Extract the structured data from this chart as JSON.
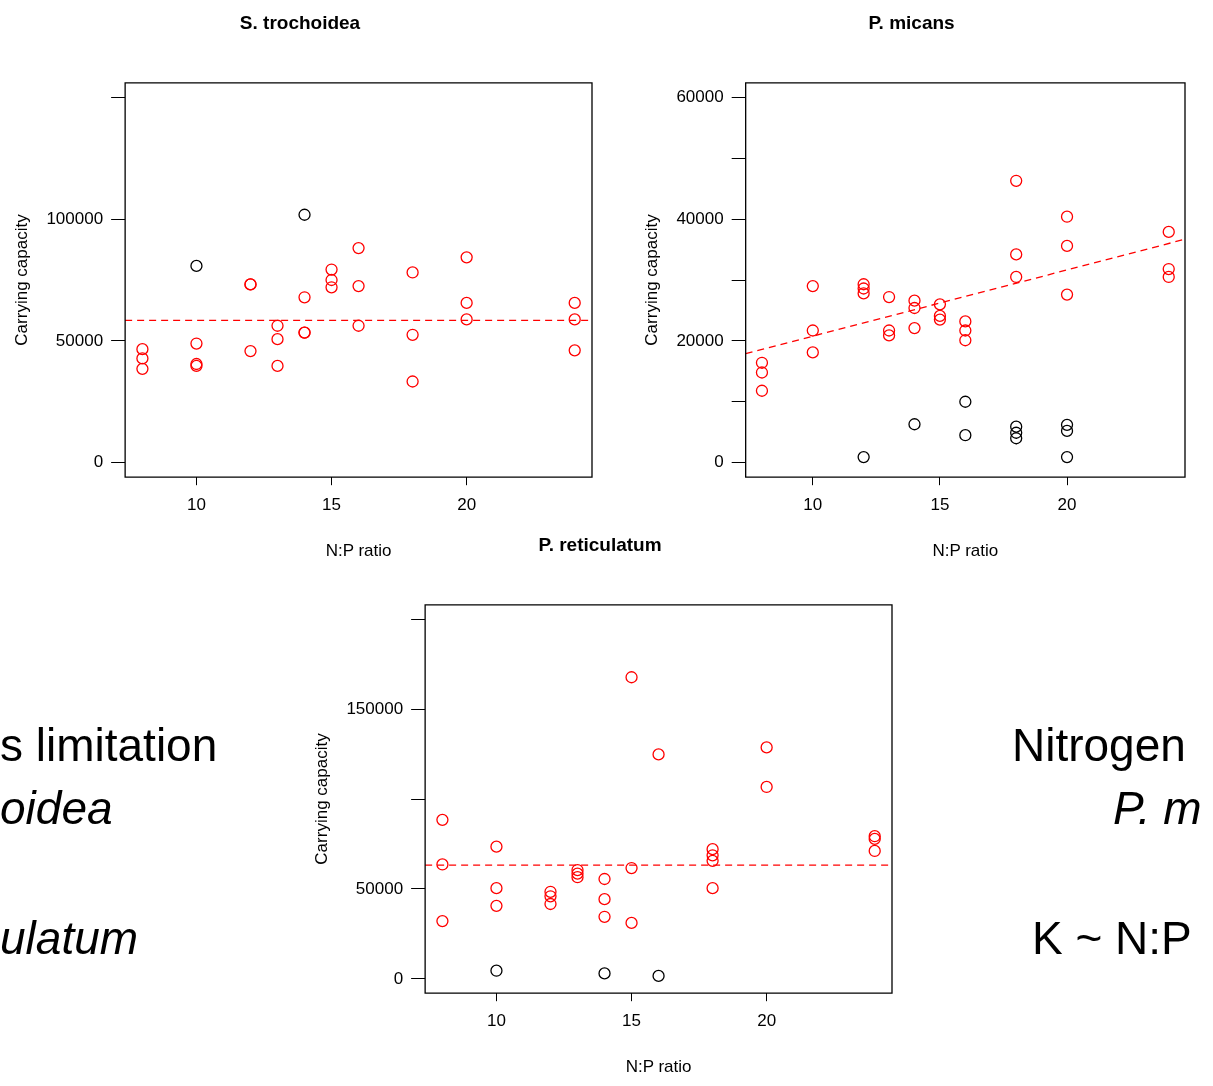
{
  "chart_data": [
    {
      "type": "scatter",
      "title": "S. trochoidea",
      "xlabel": "N:P ratio",
      "ylabel": "Carrying capacity",
      "xlim": [
        7.36,
        24.64
      ],
      "xticks": [
        10,
        15,
        20
      ],
      "ylim": [
        -6000,
        156000
      ],
      "yticks": [
        0,
        50000,
        100000,
        {
          "value": 150000,
          "label": null
        }
      ],
      "grid": false,
      "legend": false,
      "marker": "circle",
      "series": [
        {
          "color": "#ff0000",
          "x": [
            8,
            8,
            8,
            10,
            10,
            10,
            12,
            12,
            12,
            13,
            13,
            13,
            14,
            14,
            14,
            15,
            15,
            15,
            16,
            16,
            16,
            18,
            18,
            18,
            20,
            20,
            20,
            24,
            24,
            24
          ],
          "values": [
            46600,
            42800,
            38500,
            48900,
            40500,
            39700,
            73200,
            73200,
            45800,
            56200,
            50700,
            39700,
            67900,
            53400,
            53400,
            79300,
            75000,
            72000,
            88100,
            72500,
            56200,
            78100,
            52500,
            33300,
            84300,
            65600,
            58800,
            65600,
            58800,
            46100
          ]
        },
        {
          "color": "#000000",
          "x": [
            10,
            14
          ],
          "values": [
            80800,
            101800
          ]
        }
      ],
      "ref_lines": [
        {
          "axis": "y",
          "value": 58400,
          "color": "#ff0000",
          "line_style": "dashed"
        }
      ]
    },
    {
      "type": "scatter",
      "title": "P. micans",
      "xlabel": "N:P ratio",
      "ylabel": "Carrying capacity",
      "xlim": [
        7.36,
        24.64
      ],
      "xticks": [
        10,
        15,
        20
      ],
      "ylim": [
        -2400,
        62400
      ],
      "yticks": [
        0,
        {
          "value": 10000,
          "label": null
        },
        20000,
        {
          "value": 30000,
          "label": null
        },
        40000,
        {
          "value": 50000,
          "label": null
        },
        60000
      ],
      "grid": false,
      "legend": false,
      "marker": "circle",
      "series": [
        {
          "color": "#ff0000",
          "x": [
            8,
            8,
            8,
            10,
            10,
            10,
            12,
            12,
            12,
            13,
            13,
            13,
            14,
            14,
            14,
            15,
            15,
            15,
            16,
            16,
            16,
            18,
            18,
            18,
            20,
            20,
            20,
            24,
            24,
            24
          ],
          "values": [
            16400,
            14800,
            11800,
            29000,
            21700,
            18100,
            29300,
            28600,
            27800,
            27200,
            21700,
            20900,
            26600,
            25400,
            22100,
            26000,
            24100,
            23500,
            23200,
            21700,
            20100,
            46300,
            34200,
            30500,
            40400,
            35600,
            27600,
            37900,
            31800,
            30500
          ]
        },
        {
          "color": "#000000",
          "x": [
            12,
            14,
            16,
            16,
            18,
            18,
            18,
            20,
            20,
            20
          ],
          "values": [
            900,
            6300,
            10000,
            4500,
            5900,
            4900,
            4000,
            6200,
            5200,
            900
          ]
        },
        {
          "type": "line",
          "color": "#ff0000",
          "line_style": "dashed",
          "marker": "none",
          "x": [
            7.36,
            24.64
          ],
          "values": [
            17900,
            36700
          ]
        }
      ]
    },
    {
      "type": "scatter",
      "title": "P. reticulatum",
      "xlabel": "N:P ratio",
      "ylabel": "Carrying capacity",
      "xlim": [
        7.36,
        24.64
      ],
      "xticks": [
        10,
        15,
        20
      ],
      "ylim": [
        -8000,
        208000
      ],
      "yticks": [
        0,
        50000,
        {
          "value": 100000,
          "label": null
        },
        150000,
        {
          "value": 200000,
          "label": null
        }
      ],
      "grid": false,
      "legend": false,
      "marker": "circle",
      "series": [
        {
          "color": "#ff0000",
          "x": [
            8,
            8,
            8,
            10,
            10,
            10,
            12,
            12,
            12,
            13,
            13,
            13,
            14,
            14,
            14,
            15,
            15,
            15,
            16,
            18,
            18,
            18,
            18,
            20,
            20,
            24,
            24,
            24
          ],
          "values": [
            88400,
            63600,
            32100,
            73500,
            50400,
            40600,
            48400,
            45900,
            41600,
            60500,
            58500,
            56500,
            55500,
            44300,
            34500,
            167700,
            61600,
            31100,
            124800,
            72100,
            68700,
            65600,
            50400,
            128700,
            106700,
            79300,
            77800,
            71100
          ]
        },
        {
          "color": "#000000",
          "x": [
            10,
            14,
            16
          ],
          "values": [
            4500,
            3000,
            1600
          ]
        }
      ],
      "ref_lines": [
        {
          "axis": "y",
          "value": 63200,
          "color": "#ff0000",
          "line_style": "dashed"
        }
      ]
    },
    {
      "type": "other",
      "annotations": [
        "s limitation",
        "oidea",
        "ulatum",
        "Nitrogen",
        "P. m",
        "K ~ N:P"
      ]
    }
  ]
}
